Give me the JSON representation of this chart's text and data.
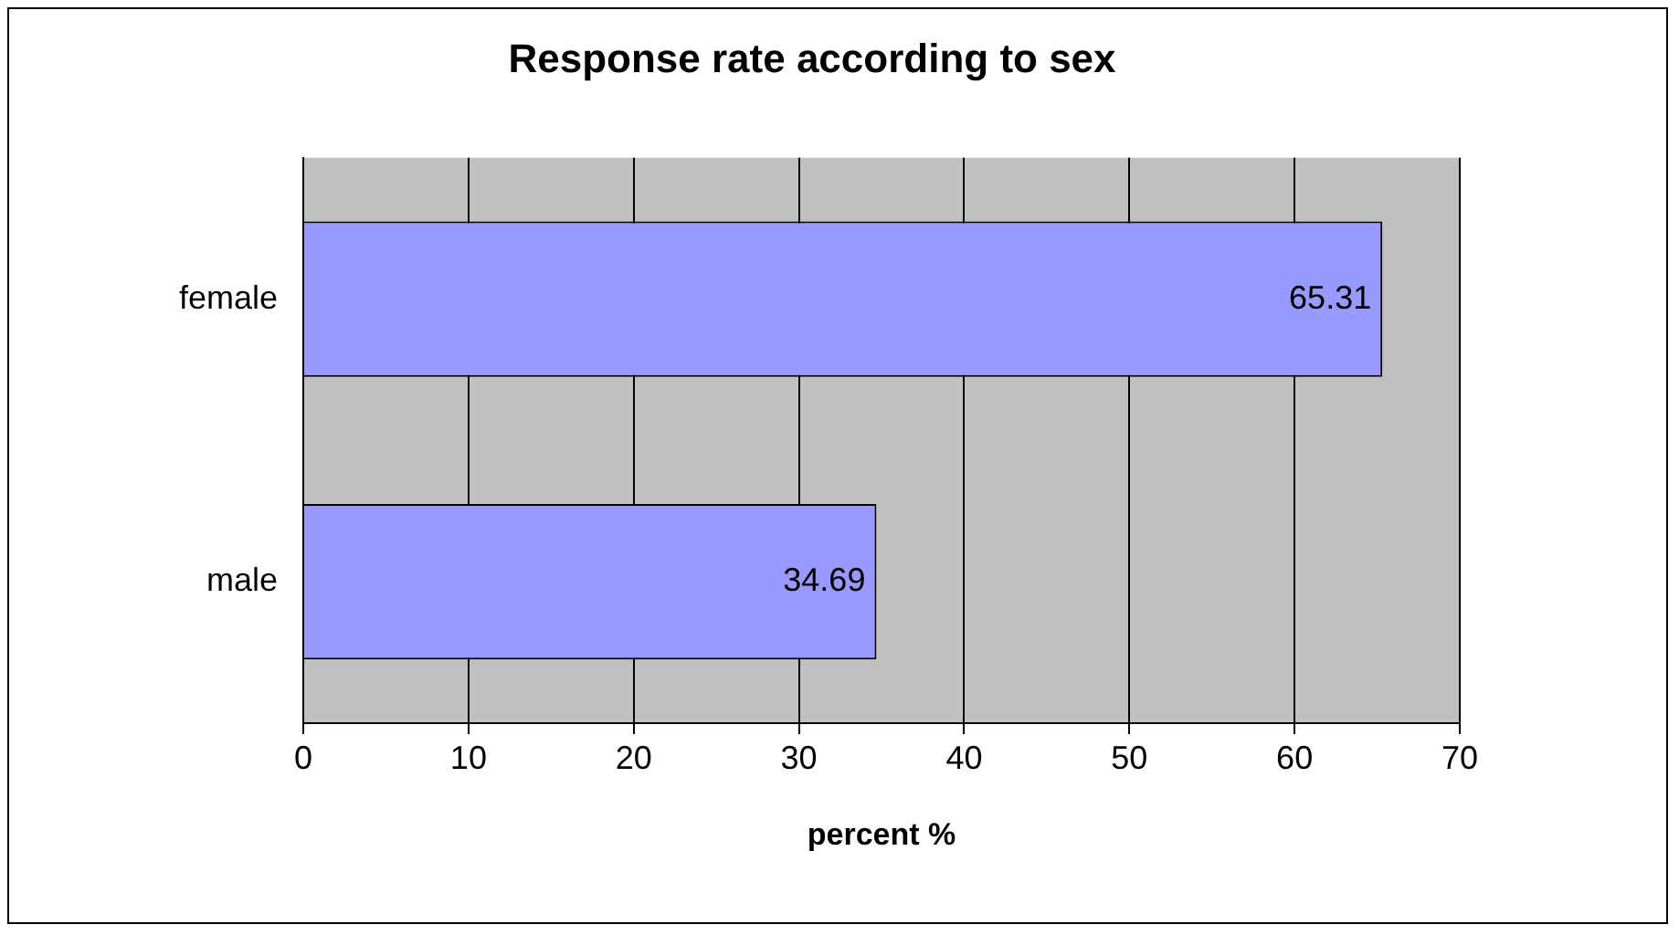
{
  "chart_data": {
    "type": "bar",
    "orientation": "horizontal",
    "title": "Response rate according to sex",
    "xlabel": "percent %",
    "categories": [
      "female",
      "male"
    ],
    "series": [
      {
        "color": "#9999ff",
        "values": [
          65.31,
          34.69
        ]
      }
    ],
    "xlim": [
      0,
      70
    ],
    "xticks": [
      0,
      10,
      20,
      30,
      40,
      50,
      60,
      70
    ],
    "grid": "x",
    "data_labels": true,
    "legend": false
  }
}
